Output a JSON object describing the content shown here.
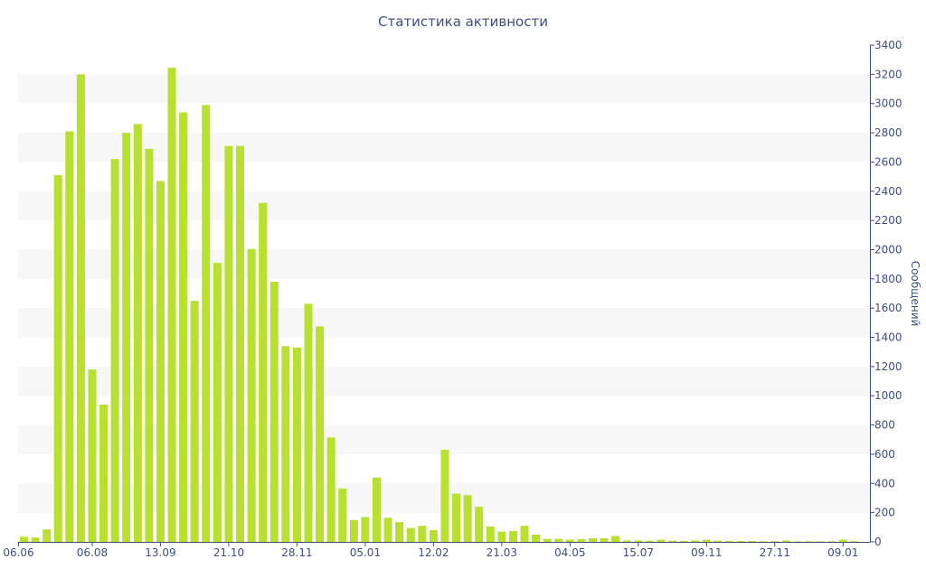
{
  "chart_data": {
    "type": "bar",
    "title": "Статистика активности",
    "xlabel": "",
    "ylabel": "Сообщений",
    "ylim": [
      0,
      3400
    ],
    "y_ticks": [
      0,
      200,
      400,
      600,
      800,
      1000,
      1200,
      1400,
      1600,
      1800,
      2000,
      2200,
      2400,
      2600,
      2800,
      3000,
      3200,
      3400
    ],
    "x_tick_labels": [
      {
        "label": "06.06",
        "index": 0
      },
      {
        "label": "06.08",
        "index": 6
      },
      {
        "label": "13.09",
        "index": 12
      },
      {
        "label": "21.10",
        "index": 18
      },
      {
        "label": "28.11",
        "index": 24
      },
      {
        "label": "05.01",
        "index": 30
      },
      {
        "label": "12.02",
        "index": 36
      },
      {
        "label": "21.03",
        "index": 42
      },
      {
        "label": "04.05",
        "index": 48
      },
      {
        "label": "15.07",
        "index": 54
      },
      {
        "label": "09.11",
        "index": 60
      },
      {
        "label": "27.11",
        "index": 66
      },
      {
        "label": "09.01",
        "index": 72
      }
    ],
    "values": [
      35,
      30,
      85,
      2510,
      2810,
      3200,
      1180,
      940,
      2620,
      2800,
      2860,
      2690,
      2470,
      3245,
      2940,
      1650,
      2990,
      1910,
      2710,
      2710,
      2005,
      2320,
      1780,
      1340,
      1330,
      1630,
      1475,
      715,
      365,
      150,
      170,
      440,
      165,
      135,
      95,
      110,
      80,
      630,
      330,
      320,
      240,
      105,
      70,
      75,
      110,
      50,
      20,
      20,
      15,
      20,
      25,
      25,
      40,
      10,
      10,
      8,
      15,
      8,
      6,
      10,
      15,
      8,
      6,
      6,
      6,
      4,
      5,
      10,
      4,
      4,
      4,
      4,
      15,
      5
    ],
    "grid": "alternating horizontal bands",
    "colors": {
      "bar": "#b7e030",
      "band": "#f7f7f7",
      "text": "#3e4f7e",
      "axis": "#3e4f7e"
    }
  }
}
